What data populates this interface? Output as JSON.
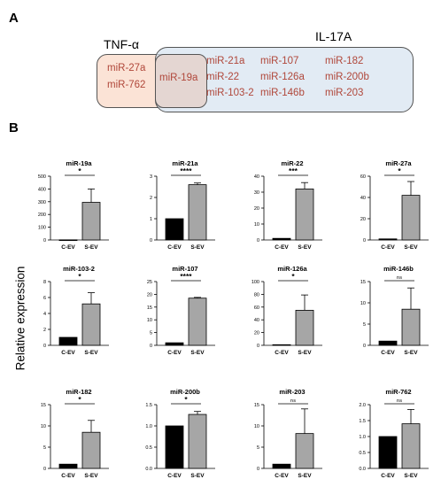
{
  "panels": {
    "a": "A",
    "b": "B"
  },
  "venn": {
    "left_title": "TNF-α",
    "right_title": "IL-17A",
    "left_only": [
      "miR-27a",
      "miR-762"
    ],
    "intersection": [
      "miR-19a"
    ],
    "right_only": [
      "miR-21a",
      "miR-22",
      "miR-103-2",
      "miR-107",
      "miR-126a",
      "miR-146b",
      "miR-182",
      "miR-200b",
      "miR-203"
    ]
  },
  "y_axis_label": "Relative expression",
  "colors": {
    "c_ev_bar": "#000000",
    "s_ev_bar": "#a6a6a6",
    "venn_left": "#fbe3d6",
    "venn_right": "#d7e3f0",
    "mir_text": "#b0473a"
  },
  "chart_data": [
    {
      "type": "bar",
      "title": "miR-19a",
      "categories": [
        "C-EV",
        "S-EV"
      ],
      "values": [
        1,
        295
      ],
      "errors": [
        0,
        105
      ],
      "ylim": [
        0,
        500
      ],
      "yticks": [
        0,
        100,
        200,
        300,
        400,
        500
      ],
      "significance": "*"
    },
    {
      "type": "bar",
      "title": "miR-21a",
      "categories": [
        "C-EV",
        "S-EV"
      ],
      "values": [
        1,
        2.6
      ],
      "errors": [
        0,
        0.08
      ],
      "ylim": [
        0,
        3
      ],
      "yticks": [
        0,
        1,
        2,
        3
      ],
      "significance": "****"
    },
    {
      "type": "bar",
      "title": "miR-22",
      "categories": [
        "C-EV",
        "S-EV"
      ],
      "values": [
        1,
        32
      ],
      "errors": [
        0,
        4
      ],
      "ylim": [
        0,
        40
      ],
      "yticks": [
        0,
        10,
        20,
        30,
        40
      ],
      "significance": "***"
    },
    {
      "type": "bar",
      "title": "miR-27a",
      "categories": [
        "C-EV",
        "S-EV"
      ],
      "values": [
        1,
        42
      ],
      "errors": [
        0,
        13
      ],
      "ylim": [
        0,
        60
      ],
      "yticks": [
        0,
        20,
        40,
        60
      ],
      "significance": "*"
    },
    {
      "type": "bar",
      "title": "miR-103-2",
      "categories": [
        "C-EV",
        "S-EV"
      ],
      "values": [
        1,
        5.2
      ],
      "errors": [
        0,
        1.4
      ],
      "ylim": [
        0,
        8
      ],
      "yticks": [
        0,
        2,
        4,
        6,
        8
      ],
      "significance": "*"
    },
    {
      "type": "bar",
      "title": "miR-107",
      "categories": [
        "C-EV",
        "S-EV"
      ],
      "values": [
        1,
        18.5
      ],
      "errors": [
        0,
        0.3
      ],
      "ylim": [
        0,
        25
      ],
      "yticks": [
        0,
        5,
        10,
        15,
        20,
        25
      ],
      "significance": "****"
    },
    {
      "type": "bar",
      "title": "miR-126a",
      "categories": [
        "C-EV",
        "S-EV"
      ],
      "values": [
        1,
        55
      ],
      "errors": [
        0,
        24
      ],
      "ylim": [
        0,
        100
      ],
      "yticks": [
        0,
        20,
        40,
        60,
        80,
        100
      ],
      "significance": "*"
    },
    {
      "type": "bar",
      "title": "miR-146b",
      "categories": [
        "C-EV",
        "S-EV"
      ],
      "values": [
        1,
        8.5
      ],
      "errors": [
        0,
        5
      ],
      "ylim": [
        0,
        15
      ],
      "yticks": [
        0,
        5,
        10,
        15
      ],
      "significance": "ns"
    },
    {
      "type": "bar",
      "title": "miR-182",
      "categories": [
        "C-EV",
        "S-EV"
      ],
      "values": [
        1,
        8.5
      ],
      "errors": [
        0,
        2.8
      ],
      "ylim": [
        0,
        15
      ],
      "yticks": [
        0,
        5,
        10,
        15
      ],
      "significance": "*"
    },
    {
      "type": "bar",
      "title": "miR-200b",
      "categories": [
        "C-EV",
        "S-EV"
      ],
      "values": [
        1,
        1.27
      ],
      "errors": [
        0,
        0.07
      ],
      "ylim": [
        0,
        1.5
      ],
      "yticks": [
        0,
        0.5,
        1.0,
        1.5
      ],
      "significance": "*"
    },
    {
      "type": "bar",
      "title": "miR-203",
      "categories": [
        "C-EV",
        "S-EV"
      ],
      "values": [
        1,
        8.2
      ],
      "errors": [
        0,
        5.8
      ],
      "ylim": [
        0,
        15
      ],
      "yticks": [
        0,
        5,
        10,
        15
      ],
      "significance": "ns"
    },
    {
      "type": "bar",
      "title": "miR-762",
      "categories": [
        "C-EV",
        "S-EV"
      ],
      "values": [
        1,
        1.4
      ],
      "errors": [
        0,
        0.45
      ],
      "ylim": [
        0,
        2.0
      ],
      "yticks": [
        0,
        0.5,
        1.0,
        1.5,
        2.0
      ],
      "significance": "ns"
    }
  ]
}
